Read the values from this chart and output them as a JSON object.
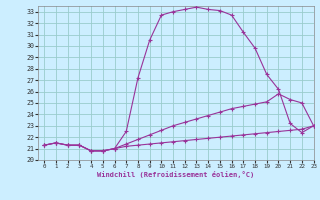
{
  "xlabel": "Windchill (Refroidissement éolien,°C)",
  "xlim": [
    -0.5,
    23
  ],
  "ylim": [
    20,
    33.5
  ],
  "yticks": [
    20,
    21,
    22,
    23,
    24,
    25,
    26,
    27,
    28,
    29,
    30,
    31,
    32,
    33
  ],
  "xticks": [
    0,
    1,
    2,
    3,
    4,
    5,
    6,
    7,
    8,
    9,
    10,
    11,
    12,
    13,
    14,
    15,
    16,
    17,
    18,
    19,
    20,
    21,
    22,
    23
  ],
  "background_color": "#cceeff",
  "grid_color": "#99cccc",
  "line_color": "#993399",
  "line1_x": [
    0,
    1,
    2,
    3,
    4,
    5,
    6,
    7,
    8,
    9,
    10,
    11,
    12,
    13,
    14,
    15,
    16,
    17,
    18,
    19,
    20,
    21,
    22,
    23
  ],
  "line1_y": [
    21.3,
    21.5,
    21.3,
    21.3,
    20.8,
    20.8,
    21.0,
    22.5,
    27.2,
    30.5,
    32.7,
    33.0,
    33.2,
    33.4,
    33.2,
    33.1,
    32.7,
    31.2,
    29.8,
    27.5,
    26.2,
    23.2,
    22.4,
    23.0
  ],
  "line2_x": [
    0,
    1,
    2,
    3,
    4,
    5,
    6,
    7,
    8,
    9,
    10,
    11,
    12,
    13,
    14,
    15,
    16,
    17,
    18,
    19,
    20,
    21,
    22,
    23
  ],
  "line2_y": [
    21.3,
    21.5,
    21.3,
    21.3,
    20.8,
    20.8,
    21.0,
    21.4,
    21.8,
    22.2,
    22.6,
    23.0,
    23.3,
    23.6,
    23.9,
    24.2,
    24.5,
    24.7,
    24.9,
    25.1,
    25.8,
    25.3,
    25.0,
    23.0
  ],
  "line3_x": [
    0,
    1,
    2,
    3,
    4,
    5,
    6,
    7,
    8,
    9,
    10,
    11,
    12,
    13,
    14,
    15,
    16,
    17,
    18,
    19,
    20,
    21,
    22,
    23
  ],
  "line3_y": [
    21.3,
    21.5,
    21.3,
    21.3,
    20.8,
    20.8,
    21.0,
    21.2,
    21.3,
    21.4,
    21.5,
    21.6,
    21.7,
    21.8,
    21.9,
    22.0,
    22.1,
    22.2,
    22.3,
    22.4,
    22.5,
    22.6,
    22.7,
    23.0
  ]
}
